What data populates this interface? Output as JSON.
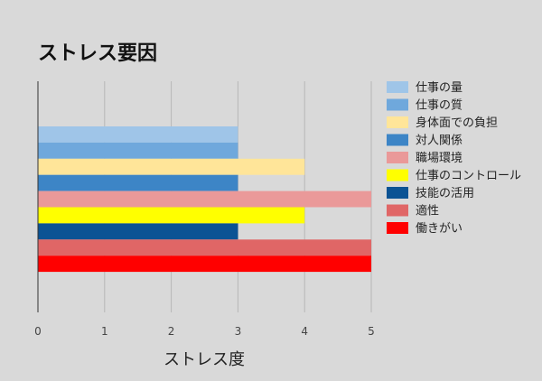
{
  "chart_data": {
    "type": "bar",
    "orientation": "horizontal",
    "title": "ストレス要因",
    "xlabel": "ストレス度",
    "ylabel": "",
    "xlim": [
      0,
      5
    ],
    "xticks": [
      "0",
      "1",
      "2",
      "3",
      "4",
      "5"
    ],
    "grid": true,
    "legend_position": "right",
    "series": [
      {
        "name": "仕事の量",
        "value": 3,
        "color": "#9fc5e8"
      },
      {
        "name": "仕事の質",
        "value": 3,
        "color": "#6fa8dc"
      },
      {
        "name": "身体面での負担",
        "value": 4,
        "color": "#ffe599"
      },
      {
        "name": "対人関係",
        "value": 3,
        "color": "#3d85c6"
      },
      {
        "name": "職場環境",
        "value": 5,
        "color": "#ea9999"
      },
      {
        "name": "仕事のコントロール",
        "value": 4,
        "color": "#ffff00"
      },
      {
        "name": "技能の活用",
        "value": 3,
        "color": "#0b5394"
      },
      {
        "name": "適性",
        "value": 5,
        "color": "#e06666"
      },
      {
        "name": "働きがい",
        "value": 5,
        "color": "#ff0000"
      }
    ]
  }
}
